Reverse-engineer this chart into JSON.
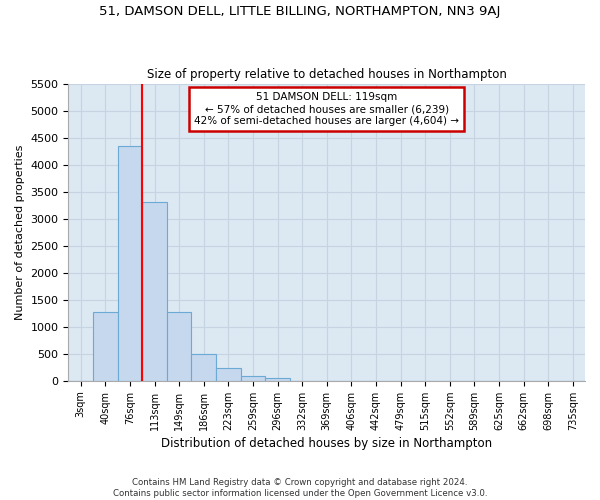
{
  "title": "51, DAMSON DELL, LITTLE BILLING, NORTHAMPTON, NN3 9AJ",
  "subtitle": "Size of property relative to detached houses in Northampton",
  "xlabel": "Distribution of detached houses by size in Northampton",
  "ylabel": "Number of detached properties",
  "footer_line1": "Contains HM Land Registry data © Crown copyright and database right 2024.",
  "footer_line2": "Contains public sector information licensed under the Open Government Licence v3.0.",
  "bar_labels": [
    "3sqm",
    "40sqm",
    "76sqm",
    "113sqm",
    "149sqm",
    "186sqm",
    "223sqm",
    "259sqm",
    "296sqm",
    "332sqm",
    "369sqm",
    "406sqm",
    "442sqm",
    "479sqm",
    "515sqm",
    "552sqm",
    "589sqm",
    "625sqm",
    "662sqm",
    "698sqm",
    "735sqm"
  ],
  "bar_values": [
    0,
    1270,
    4350,
    3310,
    1270,
    490,
    230,
    90,
    60,
    0,
    0,
    0,
    0,
    0,
    0,
    0,
    0,
    0,
    0,
    0,
    0
  ],
  "bar_color": "#c5d8ee",
  "bar_edge_color": "#6aaad4",
  "ylim": [
    0,
    5500
  ],
  "yticks": [
    0,
    500,
    1000,
    1500,
    2000,
    2500,
    3000,
    3500,
    4000,
    4500,
    5000,
    5500
  ],
  "red_line_bar_index": 3,
  "annotation_text": "51 DAMSON DELL: 119sqm\n← 57% of detached houses are smaller (6,239)\n42% of semi-detached houses are larger (4,604) →",
  "annotation_box_color": "#ffffff",
  "annotation_box_edgecolor": "#cc0000",
  "grid_color": "#c5d4e0",
  "background_color": "#dce8f2",
  "fig_background": "#ffffff"
}
